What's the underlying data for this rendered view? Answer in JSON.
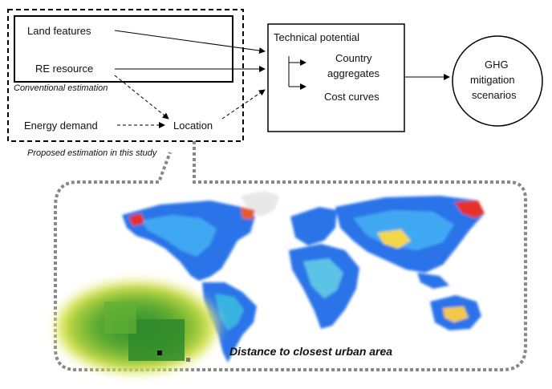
{
  "inputs": {
    "land_features": "Land features",
    "re_resource": "RE resource",
    "energy_demand": "Energy demand",
    "location": "Location"
  },
  "frames": {
    "conventional": "Conventional estimation",
    "proposed": "Proposed estimation in this study"
  },
  "potential_box": {
    "title": "Technical potential",
    "country_aggregates_line1": "Country",
    "country_aggregates_line2": "aggregates",
    "cost_curves": "Cost curves"
  },
  "ghg_circle": {
    "line1": "GHG",
    "line2": "mitigation",
    "line3": "scenarios"
  },
  "map": {
    "caption": "Distance to closest urban area"
  }
}
